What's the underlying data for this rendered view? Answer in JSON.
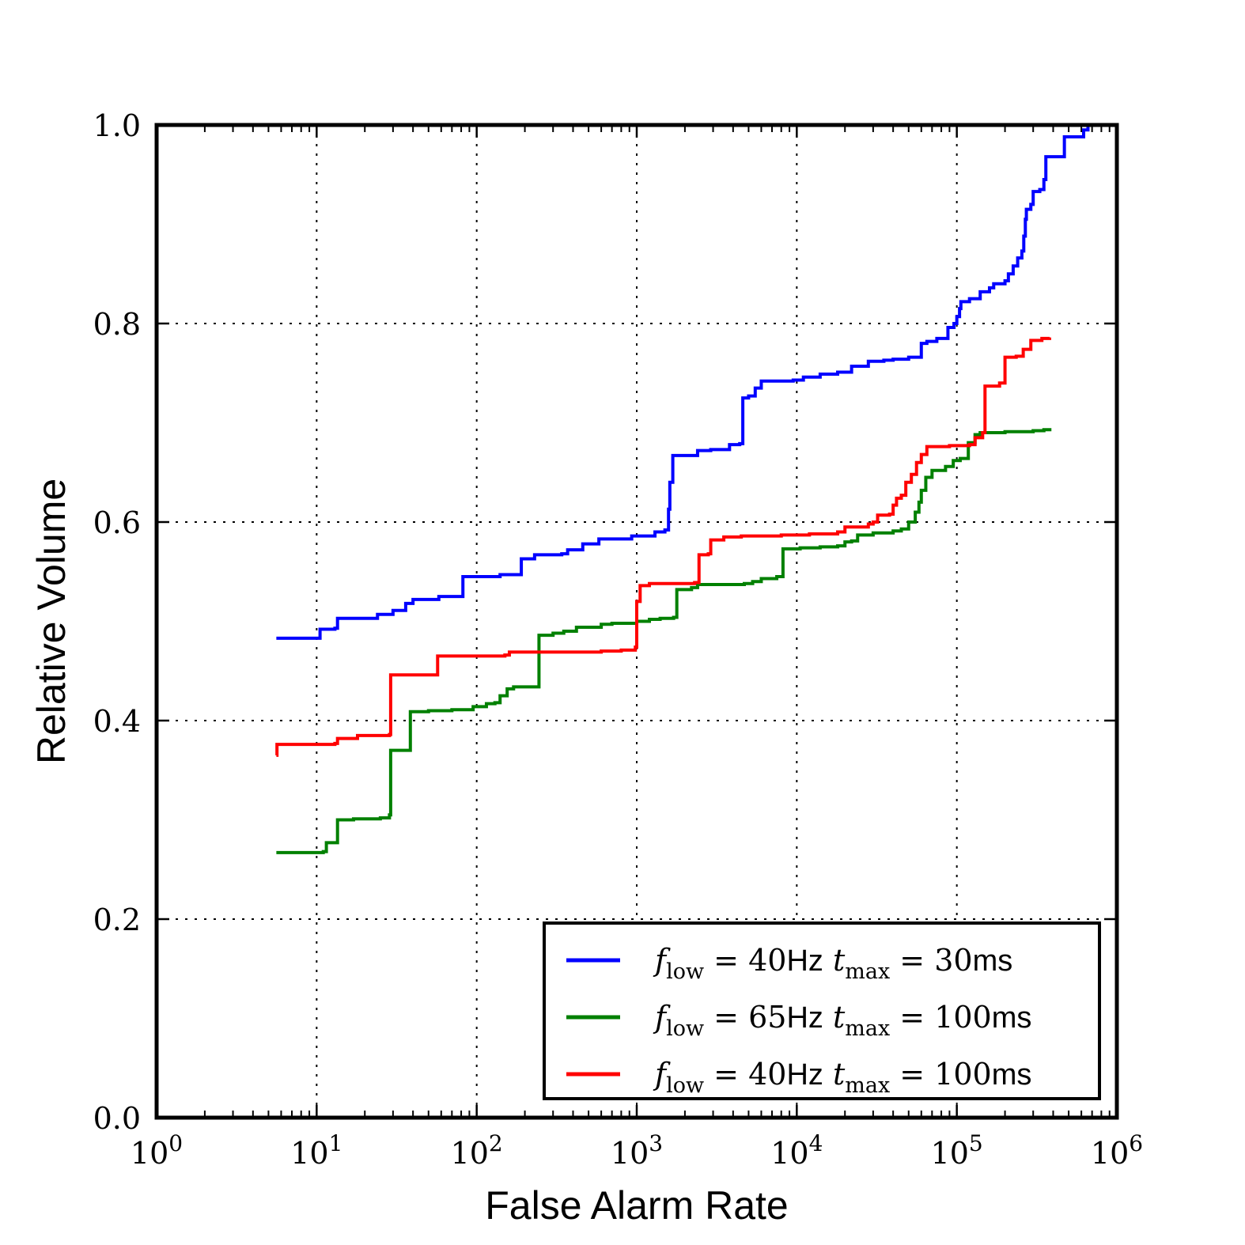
{
  "chart_data": {
    "type": "line",
    "xlabel": "False Alarm Rate",
    "ylabel": "Relative Volume",
    "xscale": "log",
    "xlim": [
      1,
      1000000
    ],
    "ylim": [
      0.0,
      1.0
    ],
    "grid": true,
    "legend_position": "lower-right",
    "x_tick_labels": [
      {
        "base": "10",
        "exp": "0"
      },
      {
        "base": "10",
        "exp": "1"
      },
      {
        "base": "10",
        "exp": "2"
      },
      {
        "base": "10",
        "exp": "3"
      },
      {
        "base": "10",
        "exp": "4"
      },
      {
        "base": "10",
        "exp": "5"
      },
      {
        "base": "10",
        "exp": "6"
      }
    ],
    "y_tick_labels": [
      "0.0",
      "0.2",
      "0.4",
      "0.6",
      "0.8",
      "1.0"
    ],
    "series": [
      {
        "name": "f_low = 40Hz t_max = 30ms",
        "label_parts": {
          "f": "f",
          "fsub": "low",
          "fval": " = 40",
          "funit": "Hz",
          "t": " t",
          "tsub": "max",
          "tval": " = 30",
          "tunit": "ms"
        },
        "color": "#0000ff",
        "points": [
          [
            5.6,
            0.483
          ],
          [
            10.5,
            0.492
          ],
          [
            13,
            0.493
          ],
          [
            13.5,
            0.503
          ],
          [
            23,
            0.503
          ],
          [
            24,
            0.507
          ],
          [
            29,
            0.507
          ],
          [
            30,
            0.511
          ],
          [
            36,
            0.518
          ],
          [
            40,
            0.522
          ],
          [
            55,
            0.522
          ],
          [
            58,
            0.525
          ],
          [
            80,
            0.525
          ],
          [
            82,
            0.545
          ],
          [
            130,
            0.545
          ],
          [
            140,
            0.547
          ],
          [
            185,
            0.547
          ],
          [
            190,
            0.563
          ],
          [
            225,
            0.563
          ],
          [
            230,
            0.567
          ],
          [
            340,
            0.568
          ],
          [
            370,
            0.572
          ],
          [
            430,
            0.572
          ],
          [
            460,
            0.578
          ],
          [
            550,
            0.578
          ],
          [
            580,
            0.583
          ],
          [
            880,
            0.583
          ],
          [
            930,
            0.586
          ],
          [
            1200,
            0.586
          ],
          [
            1300,
            0.59
          ],
          [
            1500,
            0.592
          ],
          [
            1560,
            0.592
          ],
          [
            1580,
            0.613
          ],
          [
            1610,
            0.64
          ],
          [
            1680,
            0.667
          ],
          [
            2300,
            0.667
          ],
          [
            2400,
            0.672
          ],
          [
            2900,
            0.673
          ],
          [
            3800,
            0.678
          ],
          [
            4400,
            0.679
          ],
          [
            4600,
            0.725
          ],
          [
            5000,
            0.727
          ],
          [
            5500,
            0.735
          ],
          [
            6000,
            0.742
          ],
          [
            8000,
            0.742
          ],
          [
            9500,
            0.743
          ],
          [
            11000,
            0.746
          ],
          [
            14000,
            0.749
          ],
          [
            18000,
            0.751
          ],
          [
            22000,
            0.757
          ],
          [
            26000,
            0.757
          ],
          [
            28000,
            0.762
          ],
          [
            35000,
            0.763
          ],
          [
            40000,
            0.764
          ],
          [
            50000,
            0.766
          ],
          [
            58000,
            0.766
          ],
          [
            60000,
            0.78
          ],
          [
            65000,
            0.782
          ],
          [
            75000,
            0.785
          ],
          [
            85000,
            0.785
          ],
          [
            88000,
            0.796
          ],
          [
            96000,
            0.8
          ],
          [
            100000,
            0.807
          ],
          [
            104000,
            0.815
          ],
          [
            106000,
            0.822
          ],
          [
            120000,
            0.825
          ],
          [
            140000,
            0.832
          ],
          [
            160000,
            0.836
          ],
          [
            170000,
            0.84
          ],
          [
            200000,
            0.843
          ],
          [
            210000,
            0.85
          ],
          [
            225000,
            0.858
          ],
          [
            240000,
            0.866
          ],
          [
            255000,
            0.873
          ],
          [
            262000,
            0.888
          ],
          [
            268000,
            0.905
          ],
          [
            272000,
            0.915
          ],
          [
            290000,
            0.92
          ],
          [
            300000,
            0.933
          ],
          [
            330000,
            0.935
          ],
          [
            350000,
            0.945
          ],
          [
            360000,
            0.968
          ],
          [
            450000,
            0.968
          ],
          [
            470000,
            0.988
          ],
          [
            590000,
            0.988
          ],
          [
            620000,
            0.995
          ],
          [
            660000,
            1.0
          ]
        ]
      },
      {
        "name": "f_low = 65Hz t_max = 100ms",
        "label_parts": {
          "f": "f",
          "fsub": "low",
          "fval": " = 65",
          "funit": "Hz",
          "t": " t",
          "tsub": "max",
          "tval": " = 100",
          "tunit": "ms"
        },
        "color": "#008000",
        "points": [
          [
            5.6,
            0.267
          ],
          [
            11,
            0.268
          ],
          [
            11.5,
            0.277
          ],
          [
            13,
            0.277
          ],
          [
            13.5,
            0.3
          ],
          [
            17,
            0.301
          ],
          [
            25,
            0.302
          ],
          [
            28.5,
            0.305
          ],
          [
            29,
            0.37
          ],
          [
            37,
            0.37
          ],
          [
            38.5,
            0.409
          ],
          [
            50,
            0.41
          ],
          [
            70,
            0.411
          ],
          [
            95,
            0.414
          ],
          [
            115,
            0.417
          ],
          [
            130,
            0.418
          ],
          [
            140,
            0.425
          ],
          [
            155,
            0.432
          ],
          [
            170,
            0.434
          ],
          [
            240,
            0.434
          ],
          [
            245,
            0.486
          ],
          [
            300,
            0.488
          ],
          [
            350,
            0.49
          ],
          [
            420,
            0.494
          ],
          [
            600,
            0.497
          ],
          [
            700,
            0.498
          ],
          [
            1000,
            0.5
          ],
          [
            1200,
            0.502
          ],
          [
            1400,
            0.503
          ],
          [
            1700,
            0.504
          ],
          [
            1780,
            0.532
          ],
          [
            2200,
            0.534
          ],
          [
            2400,
            0.537
          ],
          [
            4700,
            0.538
          ],
          [
            5300,
            0.54
          ],
          [
            6000,
            0.543
          ],
          [
            7500,
            0.545
          ],
          [
            8200,
            0.573
          ],
          [
            10500,
            0.574
          ],
          [
            14000,
            0.575
          ],
          [
            18000,
            0.576
          ],
          [
            20000,
            0.58
          ],
          [
            22000,
            0.581
          ],
          [
            24000,
            0.587
          ],
          [
            30000,
            0.589
          ],
          [
            40000,
            0.591
          ],
          [
            45000,
            0.593
          ],
          [
            50000,
            0.6
          ],
          [
            55000,
            0.61
          ],
          [
            58000,
            0.62
          ],
          [
            60000,
            0.632
          ],
          [
            64000,
            0.645
          ],
          [
            70000,
            0.652
          ],
          [
            85000,
            0.656
          ],
          [
            95000,
            0.662
          ],
          [
            105000,
            0.664
          ],
          [
            118000,
            0.68
          ],
          [
            130000,
            0.688
          ],
          [
            140000,
            0.69
          ],
          [
            200000,
            0.691
          ],
          [
            300000,
            0.692
          ],
          [
            350000,
            0.693
          ],
          [
            390000,
            0.693
          ]
        ]
      },
      {
        "name": "f_low = 40Hz t_max = 100ms",
        "label_parts": {
          "f": "f",
          "fsub": "low",
          "fval": " = 40",
          "funit": "Hz",
          "t": " t",
          "tsub": "max",
          "tval": " = 100",
          "tunit": "ms"
        },
        "color": "#ff0000",
        "points": [
          [
            5.6,
            0.365
          ],
          [
            5.65,
            0.376
          ],
          [
            13,
            0.377
          ],
          [
            13.5,
            0.382
          ],
          [
            17,
            0.382
          ],
          [
            18,
            0.385
          ],
          [
            28.5,
            0.386
          ],
          [
            29,
            0.446
          ],
          [
            55,
            0.446
          ],
          [
            57,
            0.465
          ],
          [
            150,
            0.466
          ],
          [
            160,
            0.469
          ],
          [
            600,
            0.47
          ],
          [
            800,
            0.471
          ],
          [
            980,
            0.474
          ],
          [
            1000,
            0.52
          ],
          [
            1050,
            0.536
          ],
          [
            1200,
            0.538
          ],
          [
            2300,
            0.539
          ],
          [
            2450,
            0.567
          ],
          [
            2800,
            0.568
          ],
          [
            2900,
            0.582
          ],
          [
            3500,
            0.585
          ],
          [
            4500,
            0.586
          ],
          [
            8000,
            0.587
          ],
          [
            12000,
            0.588
          ],
          [
            18000,
            0.59
          ],
          [
            20000,
            0.595
          ],
          [
            28000,
            0.598
          ],
          [
            30000,
            0.6
          ],
          [
            32000,
            0.607
          ],
          [
            38000,
            0.608
          ],
          [
            40000,
            0.617
          ],
          [
            42000,
            0.624
          ],
          [
            45000,
            0.627
          ],
          [
            48000,
            0.64
          ],
          [
            52000,
            0.648
          ],
          [
            56000,
            0.66
          ],
          [
            60000,
            0.668
          ],
          [
            65000,
            0.676
          ],
          [
            90000,
            0.677
          ],
          [
            120000,
            0.678
          ],
          [
            130000,
            0.685
          ],
          [
            145000,
            0.69
          ],
          [
            150000,
            0.737
          ],
          [
            185000,
            0.74
          ],
          [
            200000,
            0.766
          ],
          [
            235000,
            0.767
          ],
          [
            260000,
            0.774
          ],
          [
            290000,
            0.783
          ],
          [
            340000,
            0.785
          ],
          [
            380000,
            0.786
          ]
        ]
      }
    ]
  }
}
